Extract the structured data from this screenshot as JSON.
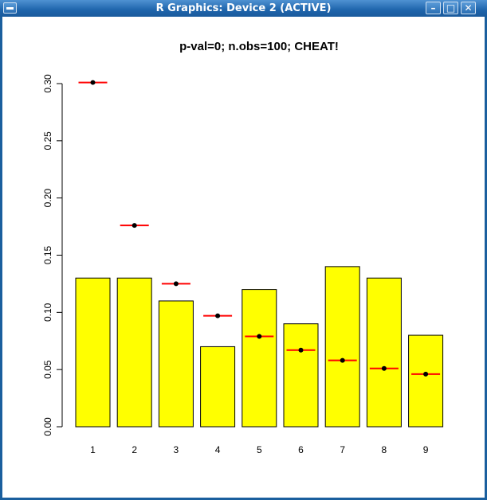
{
  "window": {
    "title": "R Graphics: Device 2 (ACTIVE)",
    "minimize_icon": "minimize-icon",
    "maximize_icon": "maximize-icon",
    "close_icon": "close-icon"
  },
  "chart_data": {
    "type": "bar",
    "title": "p-val=0; n.obs=100;   CHEAT!",
    "xlabel": "",
    "ylabel": "",
    "categories": [
      "1",
      "2",
      "3",
      "4",
      "5",
      "6",
      "7",
      "8",
      "9"
    ],
    "values": [
      0.13,
      0.13,
      0.11,
      0.07,
      0.12,
      0.09,
      0.14,
      0.13,
      0.08
    ],
    "expected": [
      0.301,
      0.176,
      0.125,
      0.097,
      0.079,
      0.067,
      0.058,
      0.051,
      0.046
    ],
    "ylim": [
      0,
      0.3
    ],
    "yticks": [
      "0.00",
      "0.05",
      "0.10",
      "0.15",
      "0.20",
      "0.25",
      "0.30"
    ],
    "bar_color": "#ffff00",
    "marker_line_color": "#ff0000",
    "marker_point_color": "#000000",
    "grid": false
  }
}
